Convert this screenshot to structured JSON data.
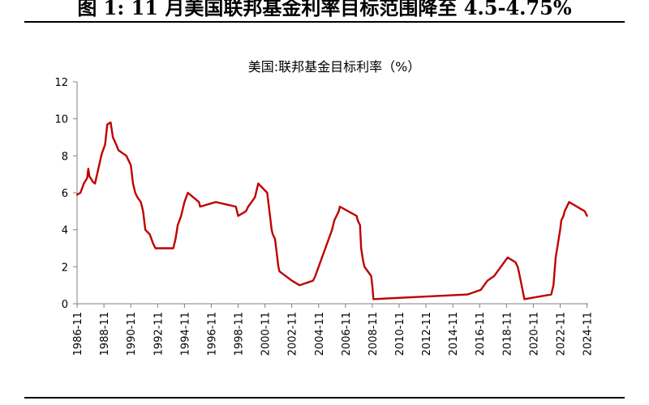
{
  "figure": {
    "caption": "图 1:  11 月美国联邦基金利率目标范围降至 4.5-4.75%"
  },
  "colors": {
    "series": "#C00000",
    "axis": "#808080",
    "text": "#000000"
  },
  "chart_data": {
    "type": "line",
    "title": "美国:联邦基金目标利率（%）",
    "xlabel": "",
    "ylabel": "",
    "xlim": [
      1986.83,
      2024.92
    ],
    "ylim": [
      0,
      12
    ],
    "grid": false,
    "legend": "none",
    "y_ticks": [
      "0",
      "2",
      "4",
      "6",
      "8",
      "10",
      "12"
    ],
    "x_ticks": [
      "1986-11",
      "1988-11",
      "1990-11",
      "1992-11",
      "1994-11",
      "1996-11",
      "1998-11",
      "2000-11",
      "2002-11",
      "2004-11",
      "2006-11",
      "2008-11",
      "2010-11",
      "2012-11",
      "2014-11",
      "2016-11",
      "2018-11",
      "2020-11",
      "2022-11",
      "2024-11"
    ],
    "series": [
      {
        "name": "美国:联邦基金目标利率",
        "points": [
          [
            "1986-11",
            5.9
          ],
          [
            "1987-02",
            6.0
          ],
          [
            "1987-05",
            6.5
          ],
          [
            "1987-08",
            6.8
          ],
          [
            "1987-09",
            7.3
          ],
          [
            "1987-10",
            6.9
          ],
          [
            "1988-01",
            6.6
          ],
          [
            "1988-03",
            6.5
          ],
          [
            "1988-06",
            7.3
          ],
          [
            "1988-09",
            8.1
          ],
          [
            "1988-12",
            8.6
          ],
          [
            "1989-02",
            9.7
          ],
          [
            "1989-05",
            9.8
          ],
          [
            "1989-07",
            9.0
          ],
          [
            "1989-10",
            8.6
          ],
          [
            "1989-12",
            8.3
          ],
          [
            "1990-07",
            8.0
          ],
          [
            "1990-11",
            7.5
          ],
          [
            "1990-12",
            7.0
          ],
          [
            "1991-01",
            6.5
          ],
          [
            "1991-03",
            6.0
          ],
          [
            "1991-05",
            5.75
          ],
          [
            "1991-08",
            5.5
          ],
          [
            "1991-10",
            5.0
          ],
          [
            "1991-12",
            4.0
          ],
          [
            "1992-04",
            3.75
          ],
          [
            "1992-07",
            3.25
          ],
          [
            "1992-09",
            3.0
          ],
          [
            "1994-01",
            3.0
          ],
          [
            "1994-03",
            3.5
          ],
          [
            "1994-05",
            4.25
          ],
          [
            "1994-08",
            4.75
          ],
          [
            "1994-11",
            5.5
          ],
          [
            "1995-02",
            6.0
          ],
          [
            "1995-07",
            5.75
          ],
          [
            "1995-12",
            5.5
          ],
          [
            "1996-01",
            5.25
          ],
          [
            "1997-03",
            5.5
          ],
          [
            "1998-09",
            5.25
          ],
          [
            "1998-10",
            5.0
          ],
          [
            "1998-11",
            4.75
          ],
          [
            "1999-06",
            5.0
          ],
          [
            "1999-08",
            5.25
          ],
          [
            "1999-11",
            5.5
          ],
          [
            "2000-02",
            5.75
          ],
          [
            "2000-03",
            6.0
          ],
          [
            "2000-05",
            6.5
          ],
          [
            "2001-01",
            6.0
          ],
          [
            "2001-02",
            5.5
          ],
          [
            "2001-03",
            5.0
          ],
          [
            "2001-04",
            4.5
          ],
          [
            "2001-05",
            4.0
          ],
          [
            "2001-06",
            3.75
          ],
          [
            "2001-08",
            3.5
          ],
          [
            "2001-09",
            3.0
          ],
          [
            "2001-10",
            2.5
          ],
          [
            "2001-11",
            2.0
          ],
          [
            "2001-12",
            1.75
          ],
          [
            "2002-11",
            1.25
          ],
          [
            "2003-06",
            1.0
          ],
          [
            "2004-06",
            1.25
          ],
          [
            "2004-08",
            1.5
          ],
          [
            "2004-11",
            2.0
          ],
          [
            "2005-02",
            2.5
          ],
          [
            "2005-05",
            3.0
          ],
          [
            "2005-08",
            3.5
          ],
          [
            "2005-11",
            4.0
          ],
          [
            "2006-01",
            4.5
          ],
          [
            "2006-03",
            4.75
          ],
          [
            "2006-05",
            5.0
          ],
          [
            "2006-06",
            5.25
          ],
          [
            "2007-09",
            4.75
          ],
          [
            "2007-10",
            4.5
          ],
          [
            "2007-12",
            4.25
          ],
          [
            "2008-01",
            3.0
          ],
          [
            "2008-03",
            2.25
          ],
          [
            "2008-04",
            2.0
          ],
          [
            "2008-10",
            1.5
          ],
          [
            "2008-11",
            1.0
          ],
          [
            "2008-12",
            0.25
          ],
          [
            "2015-12",
            0.5
          ],
          [
            "2016-12",
            0.75
          ],
          [
            "2017-03",
            1.0
          ],
          [
            "2017-06",
            1.25
          ],
          [
            "2017-12",
            1.5
          ],
          [
            "2018-03",
            1.75
          ],
          [
            "2018-06",
            2.0
          ],
          [
            "2018-09",
            2.25
          ],
          [
            "2018-12",
            2.5
          ],
          [
            "2019-07",
            2.25
          ],
          [
            "2019-09",
            2.0
          ],
          [
            "2019-10",
            1.75
          ],
          [
            "2020-03",
            0.25
          ],
          [
            "2022-03",
            0.5
          ],
          [
            "2022-05",
            1.0
          ],
          [
            "2022-06",
            1.75
          ],
          [
            "2022-07",
            2.5
          ],
          [
            "2022-09",
            3.25
          ],
          [
            "2022-11",
            4.0
          ],
          [
            "2022-12",
            4.5
          ],
          [
            "2023-02",
            4.75
          ],
          [
            "2023-03",
            5.0
          ],
          [
            "2023-05",
            5.25
          ],
          [
            "2023-07",
            5.5
          ],
          [
            "2024-09",
            5.0
          ],
          [
            "2024-11",
            4.75
          ]
        ]
      }
    ]
  }
}
